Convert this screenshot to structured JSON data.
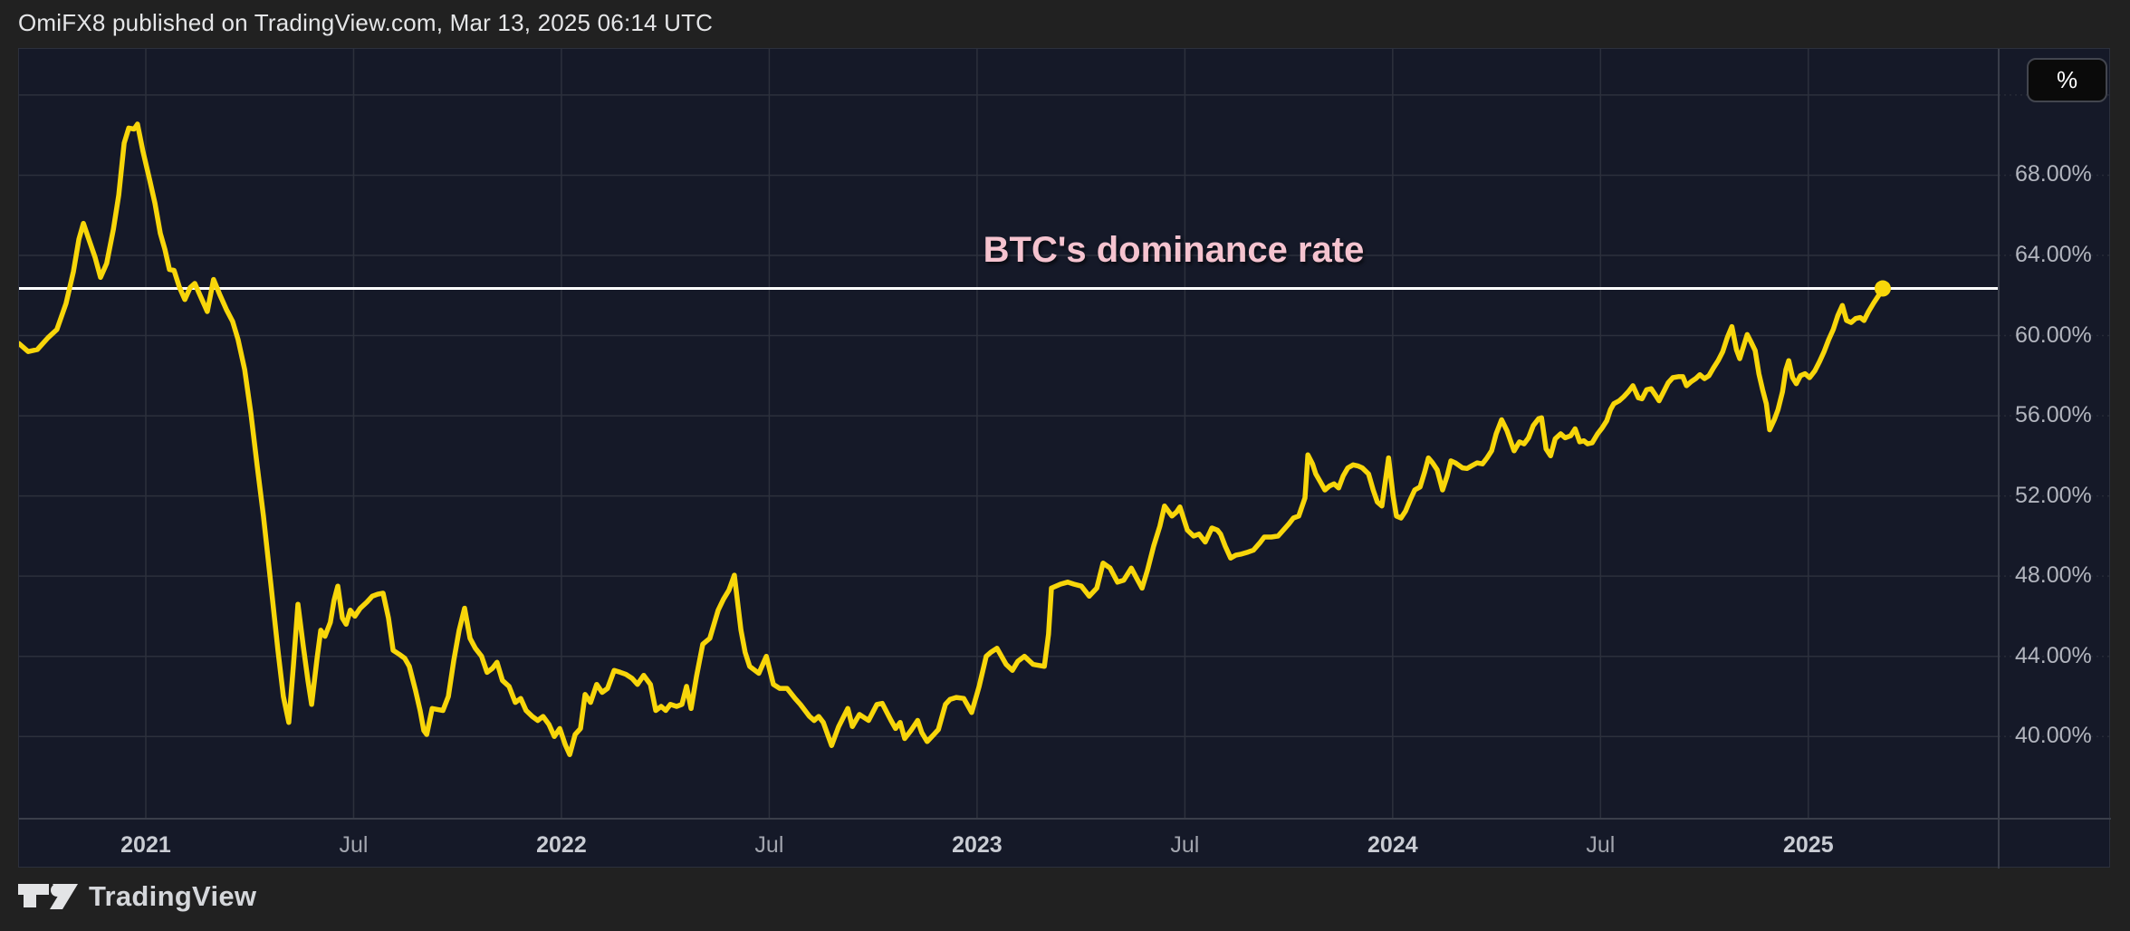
{
  "header": {
    "text": "OmiFX8 published on TradingView.com, Mar 13, 2025 06:14 UTC"
  },
  "title": {
    "text": "BTC's dominance rate"
  },
  "axis_button": {
    "label": "%"
  },
  "footer": {
    "brand": "TradingView"
  },
  "colors": {
    "outer_bg": "#212121",
    "chart_bg": "#151928",
    "grid": "#2c303c",
    "grid_dashed": "#272b37",
    "separator": "#3a3e4a",
    "line": "#f8d60a",
    "marker": "#f8d60a",
    "priceline": "#ffffff",
    "title_pink": "#f5c3cf",
    "axis_text": "#b2b5be"
  },
  "chart_data": {
    "type": "line",
    "title": "BTC's dominance rate",
    "series_name": "BTC dominance",
    "x_unit": "decimal_year",
    "y_unit": "percent",
    "x_range": [
      2020.695,
      2025.458
    ],
    "y_range": [
      35.9,
      74.3
    ],
    "grid": true,
    "priceline_value": 62.35,
    "last_value": 62.35,
    "y_gridlines": [
      40,
      44,
      48,
      52,
      56,
      60,
      64,
      68,
      72
    ],
    "y_ticks": [
      {
        "v": 68,
        "label": "68.00%"
      },
      {
        "v": 64,
        "label": "64.00%"
      },
      {
        "v": 60,
        "label": "60.00%"
      },
      {
        "v": 56,
        "label": "56.00%"
      },
      {
        "v": 52,
        "label": "52.00%"
      },
      {
        "v": 48,
        "label": "48.00%"
      },
      {
        "v": 44,
        "label": "44.00%"
      },
      {
        "v": 40,
        "label": "40.00%"
      }
    ],
    "x_ticks": [
      {
        "t": 2021.0,
        "label": "2021",
        "bold": true
      },
      {
        "t": 2021.5,
        "label": "Jul",
        "bold": false
      },
      {
        "t": 2022.0,
        "label": "2022",
        "bold": true
      },
      {
        "t": 2022.5,
        "label": "Jul",
        "bold": false
      },
      {
        "t": 2023.0,
        "label": "2023",
        "bold": true
      },
      {
        "t": 2023.5,
        "label": "Jul",
        "bold": false
      },
      {
        "t": 2024.0,
        "label": "2024",
        "bold": true
      },
      {
        "t": 2024.5,
        "label": "Jul",
        "bold": false
      },
      {
        "t": 2025.0,
        "label": "2025",
        "bold": true
      }
    ],
    "points": [
      [
        2020.695,
        59.6
      ],
      [
        2020.717,
        59.2
      ],
      [
        2020.739,
        59.3
      ],
      [
        2020.765,
        59.9
      ],
      [
        2020.786,
        60.3
      ],
      [
        2020.808,
        61.6
      ],
      [
        2020.826,
        63.2
      ],
      [
        2020.839,
        64.8
      ],
      [
        2020.85,
        65.6
      ],
      [
        2020.863,
        64.8
      ],
      [
        2020.878,
        63.9
      ],
      [
        2020.891,
        62.9
      ],
      [
        2020.906,
        63.6
      ],
      [
        2020.922,
        65.3
      ],
      [
        2020.935,
        67.0
      ],
      [
        2020.948,
        69.6
      ],
      [
        2020.959,
        70.35
      ],
      [
        2020.972,
        70.3
      ],
      [
        2020.98,
        70.55
      ],
      [
        2020.993,
        69.2
      ],
      [
        2021.009,
        67.8
      ],
      [
        2021.022,
        66.6
      ],
      [
        2021.035,
        65.1
      ],
      [
        2021.046,
        64.3
      ],
      [
        2021.057,
        63.3
      ],
      [
        2021.068,
        63.25
      ],
      [
        2021.081,
        62.4
      ],
      [
        2021.094,
        61.8
      ],
      [
        2021.107,
        62.4
      ],
      [
        2021.118,
        62.6
      ],
      [
        2021.133,
        61.9
      ],
      [
        2021.148,
        61.2
      ],
      [
        2021.163,
        62.8
      ],
      [
        2021.179,
        62.0
      ],
      [
        2021.194,
        61.3
      ],
      [
        2021.209,
        60.7
      ],
      [
        2021.222,
        59.8
      ],
      [
        2021.238,
        58.3
      ],
      [
        2021.253,
        56.1
      ],
      [
        2021.268,
        53.5
      ],
      [
        2021.283,
        51.0
      ],
      [
        2021.301,
        47.6
      ],
      [
        2021.318,
        44.3
      ],
      [
        2021.331,
        42.0
      ],
      [
        2021.344,
        40.7
      ],
      [
        2021.355,
        43.5
      ],
      [
        2021.366,
        46.6
      ],
      [
        2021.379,
        44.5
      ],
      [
        2021.39,
        42.8
      ],
      [
        2021.399,
        41.6
      ],
      [
        2021.412,
        43.9
      ],
      [
        2021.421,
        45.3
      ],
      [
        2021.431,
        45.0
      ],
      [
        2021.444,
        45.7
      ],
      [
        2021.453,
        46.8
      ],
      [
        2021.462,
        47.5
      ],
      [
        2021.473,
        45.9
      ],
      [
        2021.482,
        45.6
      ],
      [
        2021.492,
        46.3
      ],
      [
        2021.503,
        46.0
      ],
      [
        2021.516,
        46.4
      ],
      [
        2021.532,
        46.7
      ],
      [
        2021.545,
        47.0
      ],
      [
        2021.558,
        47.1
      ],
      [
        2021.571,
        47.15
      ],
      [
        2021.584,
        45.9
      ],
      [
        2021.595,
        44.3
      ],
      [
        2021.61,
        44.1
      ],
      [
        2021.623,
        43.9
      ],
      [
        2021.634,
        43.5
      ],
      [
        2021.649,
        42.3
      ],
      [
        2021.66,
        41.3
      ],
      [
        2021.669,
        40.3
      ],
      [
        2021.676,
        40.1
      ],
      [
        2021.689,
        41.4
      ],
      [
        2021.702,
        41.35
      ],
      [
        2021.715,
        41.3
      ],
      [
        2021.728,
        42.0
      ],
      [
        2021.741,
        43.8
      ],
      [
        2021.754,
        45.3
      ],
      [
        2021.767,
        46.4
      ],
      [
        2021.78,
        44.9
      ],
      [
        2021.793,
        44.4
      ],
      [
        2021.808,
        44.0
      ],
      [
        2021.821,
        43.2
      ],
      [
        2021.834,
        43.4
      ],
      [
        2021.845,
        43.7
      ],
      [
        2021.858,
        42.8
      ],
      [
        2021.874,
        42.5
      ],
      [
        2021.889,
        41.7
      ],
      [
        2021.902,
        41.9
      ],
      [
        2021.915,
        41.3
      ],
      [
        2021.93,
        41.0
      ],
      [
        2021.943,
        40.8
      ],
      [
        2021.956,
        41.0
      ],
      [
        2021.97,
        40.6
      ],
      [
        2021.983,
        40.0
      ],
      [
        2021.996,
        40.4
      ],
      [
        2022.009,
        39.6
      ],
      [
        2022.02,
        39.1
      ],
      [
        2022.033,
        40.1
      ],
      [
        2022.046,
        40.4
      ],
      [
        2022.057,
        42.1
      ],
      [
        2022.07,
        41.7
      ],
      [
        2022.085,
        42.6
      ],
      [
        2022.098,
        42.2
      ],
      [
        2022.111,
        42.4
      ],
      [
        2022.127,
        43.3
      ],
      [
        2022.142,
        43.2
      ],
      [
        2022.155,
        43.1
      ],
      [
        2022.17,
        42.9
      ],
      [
        2022.183,
        42.6
      ],
      [
        2022.198,
        43.05
      ],
      [
        2022.214,
        42.6
      ],
      [
        2022.227,
        41.3
      ],
      [
        2022.24,
        41.5
      ],
      [
        2022.251,
        41.3
      ],
      [
        2022.262,
        41.6
      ],
      [
        2022.277,
        41.5
      ],
      [
        2022.29,
        41.6
      ],
      [
        2022.301,
        42.5
      ],
      [
        2022.312,
        41.4
      ],
      [
        2022.325,
        43.0
      ],
      [
        2022.34,
        44.6
      ],
      [
        2022.357,
        44.9
      ],
      [
        2022.377,
        46.3
      ],
      [
        2022.39,
        46.85
      ],
      [
        2022.403,
        47.3
      ],
      [
        2022.416,
        48.05
      ],
      [
        2022.432,
        45.3
      ],
      [
        2022.442,
        44.2
      ],
      [
        2022.453,
        43.5
      ],
      [
        2022.475,
        43.15
      ],
      [
        2022.493,
        44.0
      ],
      [
        2022.51,
        42.6
      ],
      [
        2022.525,
        42.4
      ],
      [
        2022.543,
        42.4
      ],
      [
        2022.562,
        41.9
      ],
      [
        2022.575,
        41.6
      ],
      [
        2022.597,
        41.0
      ],
      [
        2022.608,
        40.8
      ],
      [
        2022.619,
        41.0
      ],
      [
        2022.63,
        40.7
      ],
      [
        2022.65,
        39.55
      ],
      [
        2022.667,
        40.5
      ],
      [
        2022.689,
        41.4
      ],
      [
        2022.7,
        40.5
      ],
      [
        2022.717,
        41.1
      ],
      [
        2022.739,
        40.8
      ],
      [
        2022.759,
        41.6
      ],
      [
        2022.772,
        41.65
      ],
      [
        2022.793,
        40.8
      ],
      [
        2022.804,
        40.4
      ],
      [
        2022.815,
        40.7
      ],
      [
        2022.826,
        39.9
      ],
      [
        2022.841,
        40.3
      ],
      [
        2022.857,
        40.8
      ],
      [
        2022.867,
        40.2
      ],
      [
        2022.88,
        39.75
      ],
      [
        2022.896,
        40.1
      ],
      [
        2022.907,
        40.35
      ],
      [
        2022.924,
        41.6
      ],
      [
        2022.935,
        41.85
      ],
      [
        2022.95,
        41.95
      ],
      [
        2022.968,
        41.9
      ],
      [
        2022.987,
        41.2
      ],
      [
        2023.005,
        42.5
      ],
      [
        2023.022,
        44.0
      ],
      [
        2023.033,
        44.2
      ],
      [
        2023.048,
        44.4
      ],
      [
        2023.07,
        43.6
      ],
      [
        2023.085,
        43.3
      ],
      [
        2023.098,
        43.75
      ],
      [
        2023.114,
        44.0
      ],
      [
        2023.135,
        43.6
      ],
      [
        2023.162,
        43.5
      ],
      [
        2023.172,
        45.1
      ],
      [
        2023.179,
        47.4
      ],
      [
        2023.201,
        47.6
      ],
      [
        2023.218,
        47.7
      ],
      [
        2023.233,
        47.6
      ],
      [
        2023.251,
        47.5
      ],
      [
        2023.27,
        47.0
      ],
      [
        2023.288,
        47.4
      ],
      [
        2023.303,
        48.65
      ],
      [
        2023.32,
        48.4
      ],
      [
        2023.338,
        47.7
      ],
      [
        2023.353,
        47.8
      ],
      [
        2023.371,
        48.4
      ],
      [
        2023.384,
        47.9
      ],
      [
        2023.397,
        47.4
      ],
      [
        2023.41,
        48.3
      ],
      [
        2023.425,
        49.5
      ],
      [
        2023.44,
        50.5
      ],
      [
        2023.451,
        51.5
      ],
      [
        2023.469,
        51.0
      ],
      [
        2023.48,
        51.2
      ],
      [
        2023.488,
        51.45
      ],
      [
        2023.506,
        50.3
      ],
      [
        2023.521,
        50.0
      ],
      [
        2023.534,
        50.1
      ],
      [
        2023.549,
        49.7
      ],
      [
        2023.565,
        50.4
      ],
      [
        2023.578,
        50.3
      ],
      [
        2023.586,
        50.1
      ],
      [
        2023.597,
        49.5
      ],
      [
        2023.61,
        48.9
      ],
      [
        2023.623,
        49.05
      ],
      [
        2023.636,
        49.1
      ],
      [
        2023.652,
        49.2
      ],
      [
        2023.665,
        49.3
      ],
      [
        2023.68,
        49.65
      ],
      [
        2023.691,
        49.95
      ],
      [
        2023.708,
        49.95
      ],
      [
        2023.724,
        50.0
      ],
      [
        2023.737,
        50.3
      ],
      [
        2023.75,
        50.6
      ],
      [
        2023.761,
        50.9
      ],
      [
        2023.774,
        51.0
      ],
      [
        2023.789,
        51.9
      ],
      [
        2023.796,
        54.05
      ],
      [
        2023.807,
        53.6
      ],
      [
        2023.815,
        53.1
      ],
      [
        2023.826,
        52.7
      ],
      [
        2023.837,
        52.3
      ],
      [
        2023.848,
        52.5
      ],
      [
        2023.859,
        52.6
      ],
      [
        2023.87,
        52.4
      ],
      [
        2023.881,
        53.0
      ],
      [
        2023.892,
        53.4
      ],
      [
        2023.905,
        53.55
      ],
      [
        2023.916,
        53.5
      ],
      [
        2023.927,
        53.4
      ],
      [
        2023.942,
        53.1
      ],
      [
        2023.953,
        52.3
      ],
      [
        2023.963,
        51.7
      ],
      [
        2023.974,
        51.5
      ],
      [
        2023.99,
        53.9
      ],
      [
        2024.001,
        52.0
      ],
      [
        2024.009,
        51.0
      ],
      [
        2024.02,
        50.9
      ],
      [
        2024.031,
        51.25
      ],
      [
        2024.042,
        51.8
      ],
      [
        2024.053,
        52.3
      ],
      [
        2024.066,
        52.45
      ],
      [
        2024.077,
        53.2
      ],
      [
        2024.086,
        53.9
      ],
      [
        2024.096,
        53.65
      ],
      [
        2024.107,
        53.3
      ],
      [
        2024.12,
        52.3
      ],
      [
        2024.131,
        53.0
      ],
      [
        2024.14,
        53.75
      ],
      [
        2024.151,
        53.65
      ],
      [
        2024.168,
        53.4
      ],
      [
        2024.179,
        53.37
      ],
      [
        2024.19,
        53.5
      ],
      [
        2024.203,
        53.65
      ],
      [
        2024.216,
        53.6
      ],
      [
        2024.227,
        53.9
      ],
      [
        2024.238,
        54.25
      ],
      [
        2024.249,
        55.1
      ],
      [
        2024.262,
        55.8
      ],
      [
        2024.275,
        55.25
      ],
      [
        2024.286,
        54.6
      ],
      [
        2024.292,
        54.25
      ],
      [
        2024.305,
        54.7
      ],
      [
        2024.316,
        54.6
      ],
      [
        2024.327,
        54.9
      ],
      [
        2024.338,
        55.5
      ],
      [
        2024.351,
        55.85
      ],
      [
        2024.358,
        55.9
      ],
      [
        2024.369,
        54.35
      ],
      [
        2024.38,
        54.0
      ],
      [
        2024.391,
        54.85
      ],
      [
        2024.404,
        55.1
      ],
      [
        2024.415,
        54.9
      ],
      [
        2024.428,
        55.0
      ],
      [
        2024.439,
        55.35
      ],
      [
        2024.45,
        54.7
      ],
      [
        2024.46,
        54.75
      ],
      [
        2024.469,
        54.6
      ],
      [
        2024.48,
        54.65
      ],
      [
        2024.493,
        55.1
      ],
      [
        2024.504,
        55.4
      ],
      [
        2024.515,
        55.75
      ],
      [
        2024.524,
        56.3
      ],
      [
        2024.532,
        56.6
      ],
      [
        2024.545,
        56.75
      ],
      [
        2024.556,
        56.95
      ],
      [
        2024.567,
        57.2
      ],
      [
        2024.578,
        57.5
      ],
      [
        2024.591,
        56.9
      ],
      [
        2024.6,
        56.85
      ],
      [
        2024.611,
        57.3
      ],
      [
        2024.622,
        57.35
      ],
      [
        2024.633,
        57.0
      ],
      [
        2024.641,
        56.75
      ],
      [
        2024.652,
        57.2
      ],
      [
        2024.663,
        57.65
      ],
      [
        2024.674,
        57.9
      ],
      [
        2024.687,
        57.95
      ],
      [
        2024.698,
        57.95
      ],
      [
        2024.707,
        57.5
      ],
      [
        2024.718,
        57.7
      ],
      [
        2024.729,
        57.85
      ],
      [
        2024.739,
        58.05
      ],
      [
        2024.75,
        57.85
      ],
      [
        2024.761,
        58.0
      ],
      [
        2024.772,
        58.4
      ],
      [
        2024.783,
        58.75
      ],
      [
        2024.794,
        59.2
      ],
      [
        2024.805,
        59.9
      ],
      [
        2024.816,
        60.45
      ],
      [
        2024.827,
        59.3
      ],
      [
        2024.835,
        58.85
      ],
      [
        2024.844,
        59.45
      ],
      [
        2024.853,
        60.05
      ],
      [
        2024.864,
        59.6
      ],
      [
        2024.872,
        59.25
      ],
      [
        2024.881,
        58.1
      ],
      [
        2024.89,
        57.3
      ],
      [
        2024.899,
        56.6
      ],
      [
        2024.907,
        55.3
      ],
      [
        2024.918,
        55.8
      ],
      [
        2024.927,
        56.3
      ],
      [
        2024.938,
        57.2
      ],
      [
        2024.946,
        58.3
      ],
      [
        2024.953,
        58.75
      ],
      [
        2024.962,
        57.9
      ],
      [
        2024.971,
        57.6
      ],
      [
        2024.981,
        58.0
      ],
      [
        2024.992,
        58.1
      ],
      [
        2025.003,
        57.9
      ],
      [
        2025.016,
        58.25
      ],
      [
        2025.027,
        58.7
      ],
      [
        2025.038,
        59.2
      ],
      [
        2025.049,
        59.8
      ],
      [
        2025.06,
        60.3
      ],
      [
        2025.071,
        61.0
      ],
      [
        2025.082,
        61.5
      ],
      [
        2025.092,
        60.75
      ],
      [
        2025.103,
        60.65
      ],
      [
        2025.114,
        60.85
      ],
      [
        2025.125,
        60.9
      ],
      [
        2025.134,
        60.75
      ],
      [
        2025.145,
        61.2
      ],
      [
        2025.158,
        61.65
      ],
      [
        2025.169,
        62.0
      ],
      [
        2025.179,
        62.35
      ]
    ]
  }
}
